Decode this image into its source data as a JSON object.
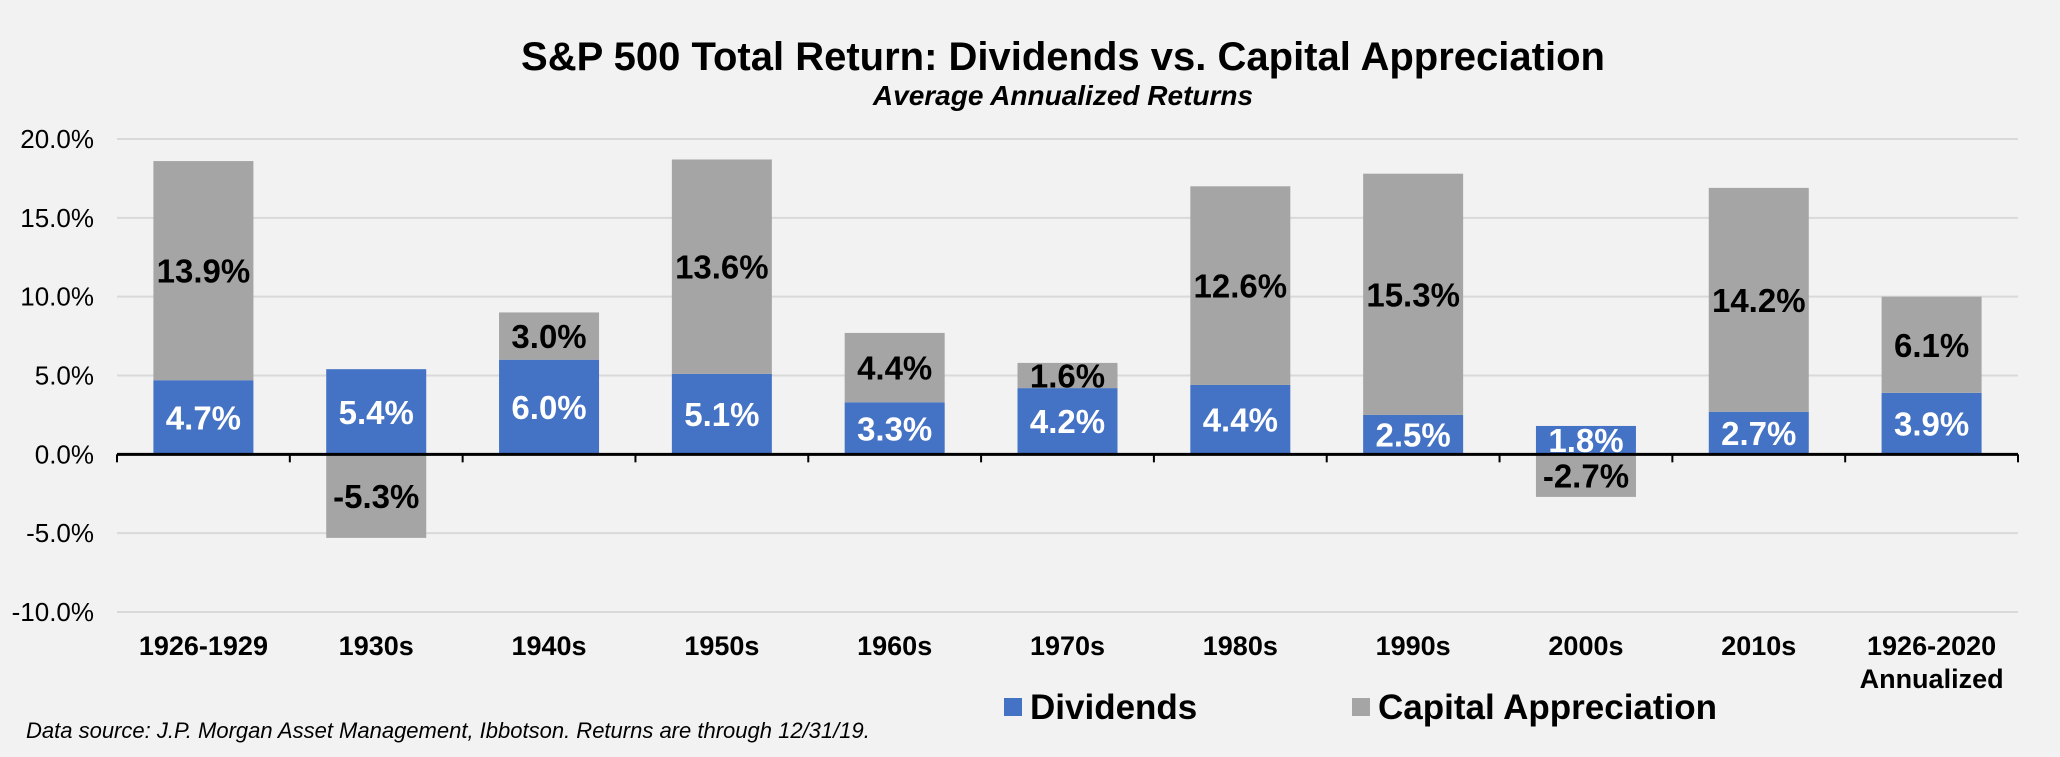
{
  "chart_data": {
    "type": "bar",
    "stacked": true,
    "title": "S&P 500 Total Return: Dividends vs. Capital Appreciation",
    "subtitle": "Average Annualized Returns",
    "categories": [
      "1926-1929",
      "1930s",
      "1940s",
      "1950s",
      "1960s",
      "1970s",
      "1980s",
      "1990s",
      "2000s",
      "2010s",
      "1926-2020\nAnnualized"
    ],
    "series": [
      {
        "name": "Dividends",
        "color": "#4472c4",
        "label_color": "#ffffff",
        "values": [
          4.7,
          5.4,
          6.0,
          5.1,
          3.3,
          4.2,
          4.4,
          2.5,
          1.8,
          2.7,
          3.9
        ],
        "labels": [
          "4.7%",
          "5.4%",
          "6.0%",
          "5.1%",
          "3.3%",
          "4.2%",
          "4.4%",
          "2.5%",
          "1.8%",
          "2.7%",
          "3.9%"
        ]
      },
      {
        "name": "Capital Appreciation",
        "color": "#a5a5a5",
        "label_color": "#000000",
        "values": [
          13.9,
          -5.3,
          3.0,
          13.6,
          4.4,
          1.6,
          12.6,
          15.3,
          -2.7,
          14.2,
          6.1
        ],
        "labels": [
          "13.9%",
          "-5.3%",
          "3.0%",
          "13.6%",
          "4.4%",
          "1.6%",
          "12.6%",
          "15.3%",
          "-2.7%",
          "14.2%",
          "6.1%"
        ]
      }
    ],
    "yticks": [
      20,
      15,
      10,
      5,
      0,
      -5,
      -10
    ],
    "ytick_labels": [
      "20.0%",
      "15.0%",
      "10.0%",
      "5.0%",
      "0.0%",
      "-5.0%",
      "-10.0%"
    ],
    "ylim": [
      -10,
      20
    ],
    "grid": true,
    "legend_position": "bottom",
    "source": "Data source: J.P. Morgan Asset Management, Ibbotson. Returns are through 12/31/19."
  }
}
